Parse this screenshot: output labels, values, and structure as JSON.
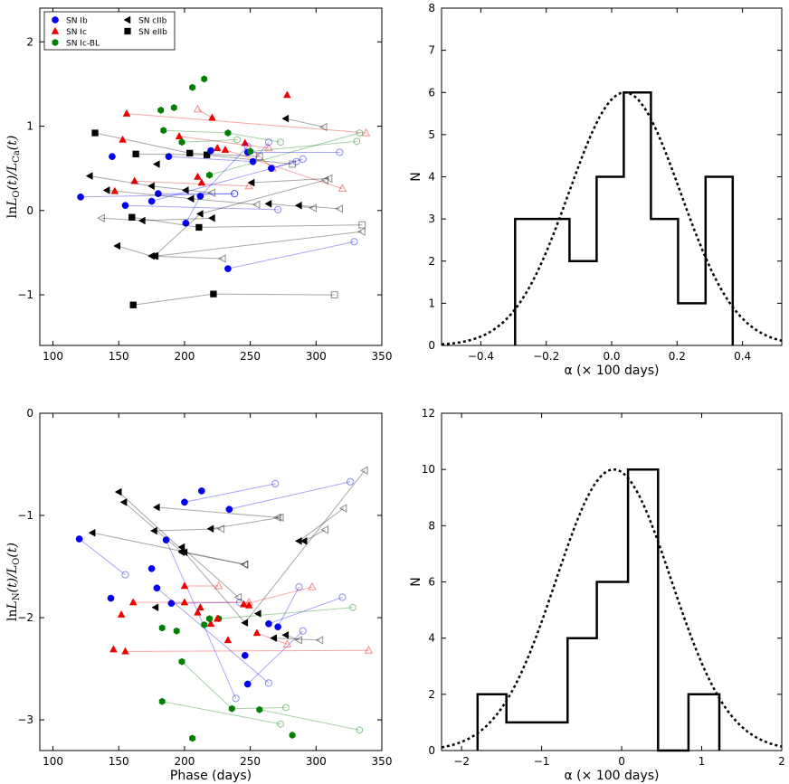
{
  "colors": {
    "SN Ib": "#0000ee",
    "SN Ic": "#ee0000",
    "SN Ic-BL": "#007f00",
    "SN cIIb": "#000000",
    "SN eIIb": "#000000"
  },
  "chart_data": [
    {
      "type": "scatter",
      "panel": "top-left",
      "xlabel": "",
      "ylabel": "lnL_O(t)/L_Ca(t)",
      "xlim": [
        90,
        350
      ],
      "ylim": [
        -1.6,
        2.4
      ],
      "xticks": [
        100,
        150,
        200,
        250,
        300,
        350
      ],
      "yticks": [
        -1,
        0,
        1,
        2
      ],
      "ytick_labels": [
        "−1",
        "0",
        "1",
        "2"
      ],
      "legend": {
        "placement": "top-left",
        "entries": [
          {
            "label": "SN Ib",
            "marker": "circle",
            "color": "#0000ee"
          },
          {
            "label": "SN Ic",
            "marker": "triangle",
            "color": "#ee0000"
          },
          {
            "label": "SN Ic-BL",
            "marker": "hexagon",
            "color": "#007f00"
          },
          {
            "label": "SN cIIb",
            "marker": "triangle-left",
            "color": "#000000"
          },
          {
            "label": "SN eIIb",
            "marker": "square",
            "color": "#000000"
          }
        ]
      },
      "points": [
        {
          "type": "SN Ib",
          "x": 145,
          "y": 0.64
        },
        {
          "type": "SN Ib",
          "x": 220,
          "y": 0.71
        },
        {
          "type": "SN Ic-BL",
          "x": 182,
          "y": 1.19
        },
        {
          "type": "SN Ic-BL",
          "x": 192,
          "y": 1.22
        },
        {
          "type": "SN Ic-BL",
          "x": 206,
          "y": 1.46
        },
        {
          "type": "SN Ic-BL",
          "x": 215,
          "y": 1.56
        },
        {
          "type": "SN Ic",
          "x": 210,
          "y": 0.4
        },
        {
          "type": "SN Ic",
          "x": 213,
          "y": 0.33
        },
        {
          "type": "SN Ic",
          "x": 225,
          "y": 0.74
        },
        {
          "type": "SN Ic",
          "x": 153,
          "y": 0.84
        },
        {
          "type": "SN Ic",
          "x": 147,
          "y": 0.23
        },
        {
          "type": "SN Ic",
          "x": 278,
          "y": 1.37
        },
        {
          "type": "SN cIIb",
          "x": 179,
          "y": 0.55
        },
        {
          "type": "SN cIIb",
          "x": 201,
          "y": 0.24
        }
      ],
      "tracks": [
        {
          "type": "SN Ic",
          "x": [
            156,
            338
          ],
          "y": [
            1.15,
            0.92
          ]
        },
        {
          "type": "SN Ic",
          "x": [
            221,
            210
          ],
          "y": [
            1.1,
            1.2
          ]
        },
        {
          "type": "SN Ic",
          "x": [
            246,
            267
          ],
          "y": [
            0.8,
            0.5
          ]
        },
        {
          "type": "SN Ic",
          "x": [
            196,
            264
          ],
          "y": [
            0.88,
            0.74
          ]
        },
        {
          "type": "SN Ic",
          "x": [
            231,
            320
          ],
          "y": [
            0.72,
            0.26
          ]
        },
        {
          "type": "SN Ic",
          "x": [
            162,
            249
          ],
          "y": [
            0.35,
            0.29
          ]
        },
        {
          "type": "SN Ib",
          "x": [
            121,
            238
          ],
          "y": [
            0.16,
            0.2
          ]
        },
        {
          "type": "SN Ib",
          "x": [
            155,
            271
          ],
          "y": [
            0.06,
            0.01
          ]
        },
        {
          "type": "SN Ib",
          "x": [
            175,
            285
          ],
          "y": [
            0.11,
            0.58
          ]
        },
        {
          "type": "SN Ib",
          "x": [
            201,
            212,
            248
          ],
          "y": [
            -0.15,
            0.17,
            0.76
          ]
        },
        {
          "type": "SN Ib",
          "x": [
            180,
            238
          ],
          "y": [
            0.2,
            0.2
          ]
        },
        {
          "type": "SN Ib",
          "x": [
            188,
            252,
            264
          ],
          "y": [
            0.64,
            0.58,
            0.81
          ]
        },
        {
          "type": "SN Ib",
          "x": [
            266,
            290
          ],
          "y": [
            0.5,
            0.61
          ]
        },
        {
          "type": "SN Ib",
          "x": [
            248,
            318
          ],
          "y": [
            0.69,
            0.69
          ]
        },
        {
          "type": "SN Ib",
          "x": [
            233,
            329
          ],
          "y": [
            -0.69,
            -0.37
          ]
        },
        {
          "type": "SN Ic-BL",
          "x": [
            184,
            233,
            273
          ],
          "y": [
            0.95,
            0.92,
            0.81
          ]
        },
        {
          "type": "SN Ic-BL",
          "x": [
            198,
            240
          ],
          "y": [
            0.81,
            0.84
          ]
        },
        {
          "type": "SN Ic-BL",
          "x": [
            219,
            333
          ],
          "y": [
            0.42,
            0.92
          ]
        },
        {
          "type": "SN Ic-BL",
          "x": [
            250,
            331
          ],
          "y": [
            0.7,
            0.82
          ]
        },
        {
          "type": "SN cIIb",
          "x": [
            277,
            306
          ],
          "y": [
            1.09,
            0.99
          ]
        },
        {
          "type": "SN cIIb",
          "x": [
            251,
            310
          ],
          "y": [
            0.33,
            0.38
          ]
        },
        {
          "type": "SN cIIb",
          "x": [
            264,
            298
          ],
          "y": [
            0.08,
            0.03
          ]
        },
        {
          "type": "SN cIIb",
          "x": [
            287,
            318
          ],
          "y": [
            0.06,
            0.02
          ]
        },
        {
          "type": "SN cIIb",
          "x": [
            221,
            168,
            137
          ],
          "y": [
            -0.09,
            -0.12,
            -0.09
          ]
        },
        {
          "type": "SN cIIb",
          "x": [
            177,
            212,
            307
          ],
          "y": [
            -0.54,
            -0.04,
            0.36
          ]
        },
        {
          "type": "SN cIIb",
          "x": [
            141,
            205,
            255
          ],
          "y": [
            0.24,
            0.14,
            0.07
          ]
        },
        {
          "type": "SN cIIb",
          "x": [
            128,
            175,
            221
          ],
          "y": [
            0.41,
            0.29,
            0.21
          ]
        },
        {
          "type": "SN cIIb",
          "x": [
            149,
            175,
            229
          ],
          "y": [
            -0.42,
            -0.54,
            -0.57
          ]
        },
        {
          "type": "SN eIIb",
          "x": [
            132,
            204,
            257
          ],
          "y": [
            0.92,
            0.68,
            0.64
          ]
        },
        {
          "type": "SN eIIb",
          "x": [
            163,
            217,
            282
          ],
          "y": [
            0.67,
            0.66,
            0.55
          ]
        },
        {
          "type": "SN eIIb",
          "x": [
            160,
            211,
            335
          ],
          "y": [
            -0.08,
            -0.2,
            -0.17
          ]
        },
        {
          "type": "SN eIIb",
          "x": [
            161,
            222,
            314
          ],
          "y": [
            -1.12,
            -0.99,
            -1.0
          ]
        },
        {
          "type": "SN cIIb",
          "x": [
            178,
            335
          ],
          "y": [
            -0.54,
            -0.25
          ]
        }
      ]
    },
    {
      "type": "bar",
      "panel": "top-right",
      "xlabel": "α (× 100 days)",
      "ylabel": "N",
      "xlim": [
        -0.52,
        0.52
      ],
      "ylim": [
        0,
        8
      ],
      "xticks": [
        -0.4,
        -0.2,
        0.0,
        0.2,
        0.4
      ],
      "xtick_labels": [
        "−0.4",
        "−0.2",
        "0.0",
        "0.2",
        "0.4"
      ],
      "yticks": [
        0,
        1,
        2,
        3,
        4,
        5,
        6,
        7,
        8
      ],
      "bin_edges": [
        -0.295,
        -0.129,
        -0.046,
        0.037,
        0.12,
        0.203,
        0.287,
        0.37
      ],
      "counts": [
        3,
        2,
        4,
        6,
        3,
        1,
        4
      ],
      "gaussian": {
        "mu": 0.04,
        "sigma": 0.17,
        "peak": 6
      }
    },
    {
      "type": "scatter",
      "panel": "bottom-left",
      "xlabel": "Phase (days)",
      "ylabel": "lnL_N(t)/L_O(t)",
      "xlim": [
        90,
        350
      ],
      "ylim": [
        -3.3,
        0
      ],
      "xticks": [
        100,
        150,
        200,
        250,
        300,
        350
      ],
      "yticks": [
        -3,
        -2,
        -1,
        0
      ],
      "ytick_labels": [
        "−3",
        "−2",
        "−1",
        "0"
      ],
      "points": [
        {
          "type": "SN Ib",
          "x": 213,
          "y": -0.76
        },
        {
          "type": "SN Ib",
          "x": 144,
          "y": -1.81
        },
        {
          "type": "SN Ib",
          "x": 175,
          "y": -1.52
        },
        {
          "type": "SN Ib",
          "x": 246,
          "y": -2.37
        },
        {
          "type": "SN Ic",
          "x": 146,
          "y": -2.31
        },
        {
          "type": "SN Ic",
          "x": 152,
          "y": -1.97
        },
        {
          "type": "SN Ic",
          "x": 200,
          "y": -1.85
        },
        {
          "type": "SN Ic",
          "x": 210,
          "y": -1.95
        },
        {
          "type": "SN Ic",
          "x": 212,
          "y": -1.9
        },
        {
          "type": "SN Ic",
          "x": 220,
          "y": -2.06
        },
        {
          "type": "SN Ic",
          "x": 225,
          "y": -2.01
        },
        {
          "type": "SN Ic",
          "x": 233,
          "y": -2.22
        },
        {
          "type": "SN Ic",
          "x": 249,
          "y": -1.88
        },
        {
          "type": "SN Ic-BL",
          "x": 183,
          "y": -2.1
        },
        {
          "type": "SN Ic-BL",
          "x": 194,
          "y": -2.13
        },
        {
          "type": "SN Ic-BL",
          "x": 215,
          "y": -2.07
        },
        {
          "type": "SN Ic-BL",
          "x": 206,
          "y": -3.18
        },
        {
          "type": "SN Ic-BL",
          "x": 282,
          "y": -3.15
        },
        {
          "type": "SN Ic-BL",
          "x": 219,
          "y": -2.01
        },
        {
          "type": "SN cIIb",
          "x": 178,
          "y": -1.9
        },
        {
          "type": "SN cIIb",
          "x": 256,
          "y": -1.96
        }
      ],
      "tracks": [
        {
          "type": "SN Ib",
          "x": [
            200,
            269
          ],
          "y": [
            -0.87,
            -0.69
          ]
        },
        {
          "type": "SN Ib",
          "x": [
            234,
            326
          ],
          "y": [
            -0.94,
            -0.67
          ]
        },
        {
          "type": "SN Ib",
          "x": [
            120,
            155
          ],
          "y": [
            -1.23,
            -1.58
          ]
        },
        {
          "type": "SN Ib",
          "x": [
            186,
            239
          ],
          "y": [
            -1.24,
            -2.79
          ]
        },
        {
          "type": "SN Ib",
          "x": [
            179,
            264
          ],
          "y": [
            -1.71,
            -2.64
          ]
        },
        {
          "type": "SN Ib",
          "x": [
            190,
            242
          ],
          "y": [
            -1.86,
            -1.85
          ]
        },
        {
          "type": "SN Ib",
          "x": [
            248,
            290
          ],
          "y": [
            -2.65,
            -2.13
          ]
        },
        {
          "type": "SN Ib",
          "x": [
            264,
            320
          ],
          "y": [
            -2.06,
            -1.8
          ]
        },
        {
          "type": "SN Ib",
          "x": [
            271,
            287
          ],
          "y": [
            -2.09,
            -1.7
          ]
        },
        {
          "type": "SN Ic",
          "x": [
            161,
            249
          ],
          "y": [
            -1.85,
            -1.85
          ]
        },
        {
          "type": "SN Ic",
          "x": [
            200,
            226
          ],
          "y": [
            -1.69,
            -1.69
          ]
        },
        {
          "type": "SN Ic",
          "x": [
            245,
            297
          ],
          "y": [
            -1.87,
            -1.7
          ]
        },
        {
          "type": "SN Ic",
          "x": [
            155,
            340
          ],
          "y": [
            -2.33,
            -2.32
          ]
        },
        {
          "type": "SN Ic",
          "x": [
            255,
            278
          ],
          "y": [
            -2.15,
            -2.26
          ]
        },
        {
          "type": "SN Ic-BL",
          "x": [
            198,
            236,
            277
          ],
          "y": [
            -2.43,
            -2.89,
            -2.88
          ]
        },
        {
          "type": "SN Ic-BL",
          "x": [
            183,
            273
          ],
          "y": [
            -2.82,
            -3.04
          ]
        },
        {
          "type": "SN Ic-BL",
          "x": [
            257,
            333
          ],
          "y": [
            -2.9,
            -3.1
          ]
        },
        {
          "type": "SN Ic-BL",
          "x": [
            226,
            328
          ],
          "y": [
            -2.01,
            -1.9
          ]
        },
        {
          "type": "SN cIIb",
          "x": [
            150,
            200,
            246,
            337
          ],
          "y": [
            -0.77,
            -1.36,
            -2.05,
            -0.56
          ]
        },
        {
          "type": "SN cIIb",
          "x": [
            154,
            198,
            246
          ],
          "y": [
            -0.87,
            -1.36,
            -1.48
          ]
        },
        {
          "type": "SN cIIb",
          "x": [
            130,
            198,
            246
          ],
          "y": [
            -1.17,
            -1.35,
            -1.48
          ]
        },
        {
          "type": "SN cIIb",
          "x": [
            179,
            271
          ],
          "y": [
            -0.92,
            -1.02
          ]
        },
        {
          "type": "SN cIIb",
          "x": [
            198,
            241
          ],
          "y": [
            -1.31,
            -1.8
          ]
        },
        {
          "type": "SN cIIb",
          "x": [
            220,
            273
          ],
          "y": [
            -1.13,
            -1.02
          ]
        },
        {
          "type": "SN cIIb",
          "x": [
            177,
            228
          ],
          "y": [
            -1.15,
            -1.13
          ]
        },
        {
          "type": "SN cIIb",
          "x": [
            268,
            303
          ],
          "y": [
            -2.2,
            -2.22
          ]
        },
        {
          "type": "SN cIIb",
          "x": [
            287,
            321
          ],
          "y": [
            -1.25,
            -0.93
          ]
        },
        {
          "type": "SN cIIb",
          "x": [
            291,
            307
          ],
          "y": [
            -1.25,
            -1.14
          ]
        },
        {
          "type": "SN cIIb",
          "x": [
            277,
            287
          ],
          "y": [
            -2.17,
            -2.22
          ]
        }
      ]
    },
    {
      "type": "bar",
      "panel": "bottom-right",
      "xlabel": "α (× 100 days)",
      "ylabel": "N",
      "xlim": [
        -2.25,
        2.0
      ],
      "ylim": [
        0,
        12
      ],
      "xticks": [
        -2,
        -1,
        0,
        1,
        2
      ],
      "xtick_labels": [
        "−2",
        "−1",
        "0",
        "1",
        "2"
      ],
      "yticks": [
        0,
        2,
        4,
        6,
        8,
        10,
        12
      ],
      "bin_edges": [
        -1.8,
        -1.44,
        -0.675,
        -0.31,
        0.08,
        0.455,
        0.835,
        1.22
      ],
      "counts": [
        2,
        1,
        4,
        6,
        10,
        0,
        2
      ],
      "gaussian": {
        "mu": -0.1,
        "sigma": 0.72,
        "peak": 10
      }
    }
  ]
}
